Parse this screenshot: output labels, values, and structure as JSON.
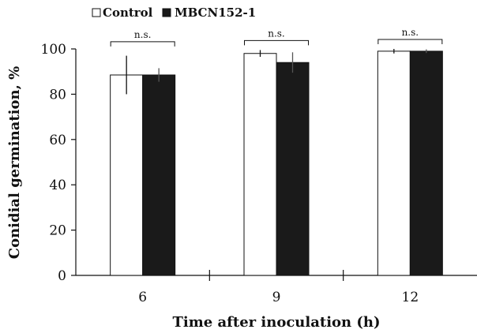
{
  "chart_data": {
    "type": "bar",
    "title": "",
    "xlabel": "Time after inoculation (h)",
    "ylabel": "Conidial germination, %",
    "categories": [
      "6",
      "9",
      "12"
    ],
    "ylim": [
      0,
      100
    ],
    "yticks": [
      0,
      20,
      40,
      60,
      80,
      100
    ],
    "series": [
      {
        "name": "Control",
        "color": "#ffffff",
        "values": [
          88.5,
          98,
          99
        ],
        "errors": [
          8.5,
          1.5,
          1.0
        ]
      },
      {
        "name": "MBCN152-1",
        "color": "#1a1a1a",
        "values": [
          88.5,
          94,
          99
        ],
        "errors": [
          3.0,
          4.5,
          0.8
        ]
      }
    ],
    "annotations": [
      "n.s.",
      "n.s.",
      "n.s."
    ],
    "legend_position": "top-left",
    "grid": false
  }
}
